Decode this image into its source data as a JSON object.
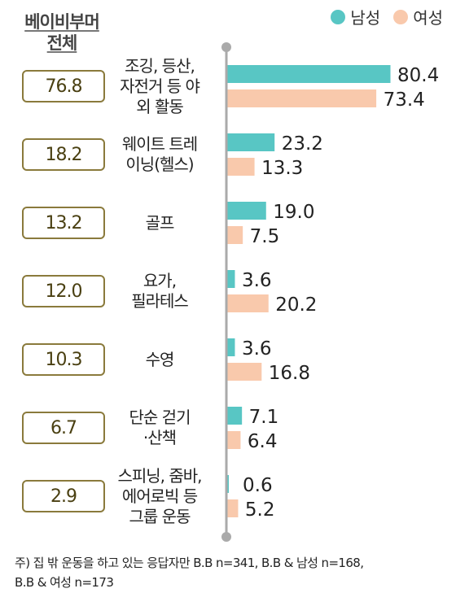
{
  "total_header": {
    "line1": "베이비부머",
    "line2": "전체"
  },
  "legend": [
    {
      "name": "남성",
      "color": "#58c6c4"
    },
    {
      "name": "여성",
      "color": "#f9c9ac"
    }
  ],
  "footnote": {
    "line1": "주) 집 밖 운동을 하고 있는 응답자만 B.B n=341, B.B & 남성 n=168,",
    "line2": "B.B & 여성 n=173"
  },
  "chart_data": {
    "type": "bar",
    "orientation": "horizontal",
    "categories": [
      [
        "조깅, 등산,",
        "자전거 등 야",
        "외 활동"
      ],
      [
        "웨이트 트레",
        "이닝(헬스)"
      ],
      [
        "골프"
      ],
      [
        "요가,",
        "필라테스"
      ],
      [
        "수영"
      ],
      [
        "단순 걷기",
        "·산책"
      ],
      [
        "스피닝, 줌바,",
        "에어로빅 등",
        "그룹 운동"
      ]
    ],
    "total_series": {
      "name": "베이비부머 전체",
      "values": [
        76.8,
        18.2,
        13.2,
        12.0,
        10.3,
        6.7,
        2.9
      ]
    },
    "series": [
      {
        "name": "남성",
        "color": "#58c6c4",
        "values": [
          80.4,
          23.2,
          19.0,
          3.6,
          3.6,
          7.1,
          0.6
        ]
      },
      {
        "name": "여성",
        "color": "#f9c9ac",
        "values": [
          73.4,
          13.3,
          7.5,
          20.2,
          16.8,
          6.4,
          5.2
        ]
      }
    ],
    "value_format": "0.0",
    "xlim": [
      0,
      80.4
    ]
  }
}
